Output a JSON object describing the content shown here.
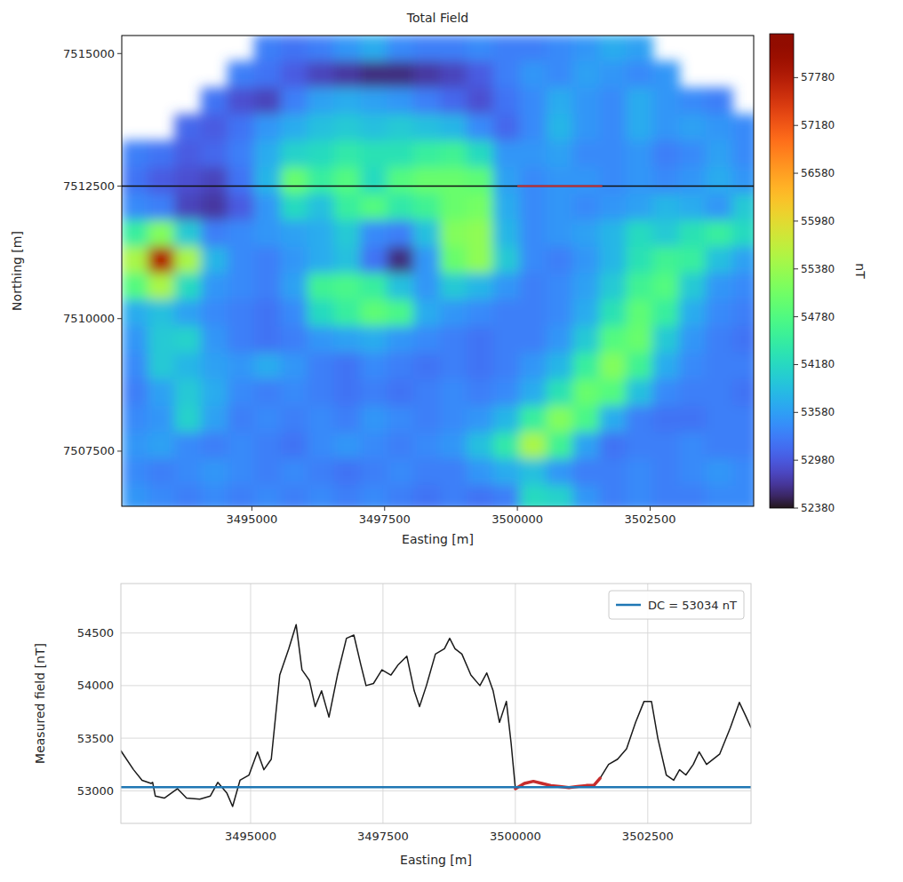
{
  "chart_data": [
    {
      "type": "heatmap",
      "title": "Total Field",
      "xlabel": "Easting [m]",
      "ylabel": "Northing [m]",
      "xlim": [
        3492550,
        3504450
      ],
      "ylim": [
        7506460,
        7515340
      ],
      "xticks": [
        3495000,
        3497500,
        3500000,
        3502500
      ],
      "yticks": [
        7507500,
        7510000,
        7512500,
        7515000
      ],
      "x": [
        3492800,
        3493300,
        3493800,
        3494300,
        3494800,
        3495300,
        3495800,
        3496300,
        3496800,
        3497300,
        3497800,
        3498300,
        3498800,
        3499300,
        3499800,
        3500300,
        3500800,
        3501300,
        3501800,
        3502300,
        3502800,
        3503300,
        3503800,
        3504300
      ],
      "y": [
        7515100,
        7514600,
        7514100,
        7513600,
        7513100,
        7512600,
        7512100,
        7511600,
        7511100,
        7510600,
        7510100,
        7509600,
        7509100,
        7508600,
        7508100,
        7507600,
        7507100,
        7506600
      ],
      "values": [
        [
          null,
          null,
          null,
          null,
          null,
          53300,
          53200,
          53300,
          53500,
          53700,
          53400,
          53300,
          53300,
          53400,
          53300,
          53300,
          53400,
          53500,
          53700,
          53600,
          null,
          null,
          null,
          null
        ],
        [
          null,
          null,
          null,
          null,
          53300,
          53200,
          53000,
          52800,
          52700,
          52600,
          52600,
          52700,
          52800,
          53000,
          53300,
          53500,
          53400,
          53600,
          53500,
          53400,
          53500,
          null,
          null,
          null
        ],
        [
          null,
          null,
          null,
          53200,
          52900,
          52800,
          53300,
          53600,
          53700,
          53600,
          53500,
          53300,
          53100,
          52900,
          53200,
          53400,
          53700,
          53500,
          53400,
          53700,
          53500,
          53400,
          53300,
          null
        ],
        [
          null,
          null,
          53100,
          53000,
          53200,
          53500,
          53700,
          53900,
          54000,
          53900,
          54000,
          53900,
          53800,
          53400,
          53100,
          53400,
          53800,
          53500,
          53400,
          53700,
          53500,
          53600,
          53500,
          53400
        ],
        [
          53300,
          53200,
          53000,
          53100,
          53300,
          53700,
          54100,
          54200,
          54400,
          54300,
          54300,
          54500,
          54600,
          54200,
          53500,
          53500,
          53600,
          53400,
          53400,
          53500,
          53300,
          53400,
          53600,
          53400
        ],
        [
          53200,
          53000,
          52900,
          52800,
          53200,
          53800,
          55000,
          54500,
          54800,
          54200,
          54800,
          55000,
          55000,
          54900,
          53600,
          53400,
          53500,
          53500,
          53400,
          53500,
          53400,
          53500,
          53700,
          53500
        ],
        [
          53400,
          53300,
          52800,
          52700,
          53000,
          53500,
          54200,
          53900,
          54500,
          54800,
          54400,
          54600,
          55000,
          55100,
          53700,
          53400,
          53500,
          53400,
          53500,
          53600,
          53800,
          53700,
          53500,
          54000
        ],
        [
          54500,
          55200,
          54000,
          53300,
          53400,
          53500,
          53600,
          53700,
          54000,
          53400,
          53300,
          53900,
          55200,
          55300,
          53800,
          53400,
          53500,
          53600,
          53800,
          54200,
          54000,
          54300,
          54500,
          54200
        ],
        [
          55500,
          57800,
          55500,
          53800,
          53400,
          53300,
          53500,
          53700,
          53900,
          53200,
          52600,
          53500,
          55000,
          55300,
          54000,
          53400,
          53300,
          53500,
          53800,
          54300,
          54600,
          54500,
          53900,
          53600
        ],
        [
          54800,
          55500,
          54200,
          53500,
          53400,
          53300,
          53600,
          54600,
          54700,
          54500,
          53900,
          53500,
          54000,
          53800,
          53500,
          53300,
          53400,
          53600,
          54000,
          54600,
          54800,
          54000,
          53500,
          53400
        ],
        [
          53700,
          53900,
          53600,
          53400,
          53300,
          53200,
          53400,
          54200,
          54500,
          54900,
          54700,
          53700,
          53500,
          53400,
          53300,
          53300,
          53400,
          53700,
          54300,
          54900,
          54500,
          53700,
          53400,
          53300
        ],
        [
          53500,
          54000,
          54100,
          53500,
          53300,
          53200,
          53300,
          53500,
          53600,
          53700,
          53500,
          53400,
          53300,
          53200,
          53300,
          53300,
          53500,
          54000,
          54800,
          55000,
          54000,
          53500,
          53300,
          53200
        ],
        [
          53400,
          54000,
          53800,
          53600,
          53500,
          53700,
          53500,
          53300,
          53200,
          53400,
          53300,
          53200,
          53300,
          53200,
          53300,
          53500,
          53800,
          54500,
          55200,
          54600,
          53700,
          53400,
          53300,
          53300
        ],
        [
          53300,
          53600,
          54000,
          53700,
          53400,
          53300,
          53400,
          53300,
          53200,
          53300,
          53200,
          53300,
          53400,
          53300,
          53400,
          53700,
          54300,
          55000,
          54800,
          53900,
          53400,
          53300,
          53300,
          53200
        ],
        [
          53400,
          53500,
          54100,
          53600,
          53300,
          53400,
          53300,
          53400,
          53300,
          53500,
          53400,
          53300,
          53400,
          53500,
          53800,
          54500,
          55200,
          54700,
          53700,
          53300,
          53200,
          53200,
          53300,
          53300
        ],
        [
          53500,
          53600,
          53400,
          53300,
          53400,
          53300,
          53200,
          53400,
          53500,
          53400,
          53300,
          53400,
          53500,
          53900,
          54400,
          55500,
          54600,
          53600,
          53200,
          53300,
          53300,
          53400,
          53300,
          53300
        ],
        [
          53400,
          53300,
          53400,
          53500,
          53400,
          53300,
          53400,
          53300,
          53200,
          53300,
          53400,
          53300,
          53300,
          53500,
          53700,
          53900,
          53500,
          53300,
          53300,
          53400,
          53300,
          53400,
          53500,
          53400
        ],
        [
          53500,
          53400,
          53300,
          53400,
          53300,
          53400,
          53300,
          53400,
          53300,
          53400,
          53300,
          53200,
          53300,
          53200,
          53300,
          54200,
          54100,
          53500,
          53300,
          53400,
          53300,
          53300,
          53400,
          53400
        ]
      ],
      "colorbar_label": "nT",
      "colorbar_range": [
        52380,
        58330
      ],
      "colorbar_ticks": [
        52380,
        52980,
        53580,
        54180,
        54780,
        55380,
        55980,
        56580,
        57180,
        57780
      ],
      "profile": {
        "y": 7512500,
        "highlight": [
          3500000,
          3501600
        ]
      }
    },
    {
      "type": "line",
      "xlabel": "Easting [m]",
      "ylabel": "Measured field [nT]",
      "xlim": [
        3492550,
        3504450
      ],
      "ylim": [
        52690,
        54970
      ],
      "xticks": [
        3495000,
        3497500,
        3500000,
        3502500
      ],
      "yticks": [
        53000,
        53500,
        54000,
        54500
      ],
      "grid": true,
      "legend": "upper right",
      "series": [
        {
          "color": "#1a1a1a",
          "x": [
            3492550,
            3492790,
            3492950,
            3493120,
            3493150,
            3493200,
            3493370,
            3493620,
            3493790,
            3494040,
            3494240,
            3494380,
            3494550,
            3494660,
            3494800,
            3494970,
            3495130,
            3495250,
            3495390,
            3495550,
            3495720,
            3495860,
            3495970,
            3496110,
            3496220,
            3496340,
            3496480,
            3496640,
            3496810,
            3496950,
            3497080,
            3497180,
            3497320,
            3497480,
            3497650,
            3497790,
            3497950,
            3498090,
            3498190,
            3498320,
            3498490,
            3498660,
            3498760,
            3498860,
            3498990,
            3499160,
            3499330,
            3499460,
            3499580,
            3499700,
            3499830,
            3499920,
            3500000,
            3500170,
            3500340,
            3500500,
            3500670,
            3500840,
            3501010,
            3501170,
            3501340,
            3501480,
            3501600,
            3501760,
            3501930,
            3502100,
            3502270,
            3502430,
            3502570,
            3502690,
            3502850,
            3502990,
            3503100,
            3503220,
            3503360,
            3503470,
            3503610,
            3503860,
            3504060,
            3504230,
            3504360,
            3504450
          ],
          "values": [
            53380,
            53200,
            53100,
            53070,
            53080,
            52950,
            52930,
            53020,
            52930,
            52920,
            52950,
            53080,
            52980,
            52850,
            53100,
            53150,
            53370,
            53200,
            53300,
            54100,
            54350,
            54580,
            54150,
            54050,
            53800,
            53950,
            53700,
            54100,
            54450,
            54480,
            54200,
            54000,
            54020,
            54150,
            54100,
            54200,
            54280,
            53950,
            53800,
            54000,
            54300,
            54350,
            54450,
            54350,
            54300,
            54100,
            54000,
            54120,
            53950,
            53650,
            53850,
            53450,
            53020,
            53070,
            53090,
            53070,
            53050,
            53040,
            53030,
            53040,
            53050,
            53050,
            53120,
            53250,
            53300,
            53400,
            53650,
            53850,
            53850,
            53500,
            53150,
            53100,
            53200,
            53150,
            53250,
            53370,
            53250,
            53350,
            53600,
            53840,
            53700,
            53600
          ]
        },
        {
          "color": "#c62d2d",
          "x": [
            3500000,
            3500170,
            3500340,
            3500500,
            3500670,
            3500840,
            3501010,
            3501170,
            3501340,
            3501480,
            3501600
          ],
          "values": [
            53020,
            53070,
            53090,
            53070,
            53050,
            53040,
            53030,
            53040,
            53050,
            53050,
            53120
          ]
        },
        {
          "name": "DC = 53034 nT",
          "color": "#1f77b4",
          "x": [
            3492550,
            3504450
          ],
          "values": [
            53034,
            53034
          ]
        }
      ]
    }
  ]
}
